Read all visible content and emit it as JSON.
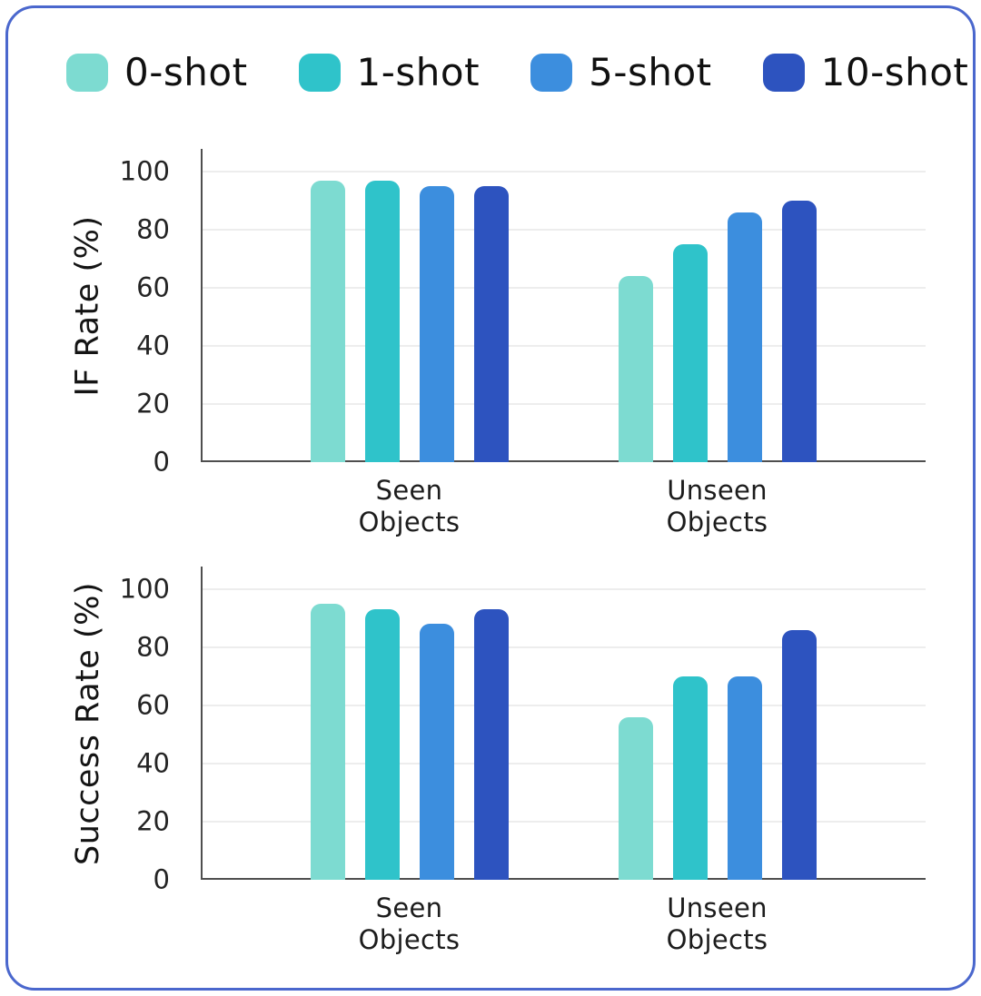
{
  "card": {
    "border_color": "#4a67cd",
    "background": "#ffffff"
  },
  "legend": {
    "position": "top",
    "items": [
      {
        "label": "0-shot",
        "color": "#7ddbd1"
      },
      {
        "label": "1-shot",
        "color": "#2fc3ca"
      },
      {
        "label": "5-shot",
        "color": "#3c8ede"
      },
      {
        "label": "10-shot",
        "color": "#2d53bf"
      }
    ]
  },
  "chart_data": [
    {
      "type": "bar",
      "title": "",
      "ylabel": "IF Rate (%)",
      "xlabel": "",
      "categories": [
        "Seen\nObjects",
        "Unseen\nObjects"
      ],
      "series": [
        {
          "name": "0-shot",
          "color": "#7ddbd1",
          "values": [
            97,
            64
          ]
        },
        {
          "name": "1-shot",
          "color": "#2fc3ca",
          "values": [
            97,
            75
          ]
        },
        {
          "name": "5-shot",
          "color": "#3c8ede",
          "values": [
            95,
            86
          ]
        },
        {
          "name": "10-shot",
          "color": "#2d53bf",
          "values": [
            95,
            90
          ]
        }
      ],
      "ylim": [
        0,
        100
      ],
      "yticks": [
        0,
        20,
        40,
        60,
        80,
        100
      ],
      "grid": true,
      "legend_position": "top"
    },
    {
      "type": "bar",
      "title": "",
      "ylabel": "Success Rate (%)",
      "xlabel": "",
      "categories": [
        "Seen\nObjects",
        "Unseen\nObjects"
      ],
      "series": [
        {
          "name": "0-shot",
          "color": "#7ddbd1",
          "values": [
            95,
            56
          ]
        },
        {
          "name": "1-shot",
          "color": "#2fc3ca",
          "values": [
            93,
            70
          ]
        },
        {
          "name": "5-shot",
          "color": "#3c8ede",
          "values": [
            88,
            70
          ]
        },
        {
          "name": "10-shot",
          "color": "#2d53bf",
          "values": [
            93,
            86
          ]
        }
      ],
      "ylim": [
        0,
        100
      ],
      "yticks": [
        0,
        20,
        40,
        60,
        80,
        100
      ],
      "grid": true,
      "legend_position": "top"
    }
  ]
}
